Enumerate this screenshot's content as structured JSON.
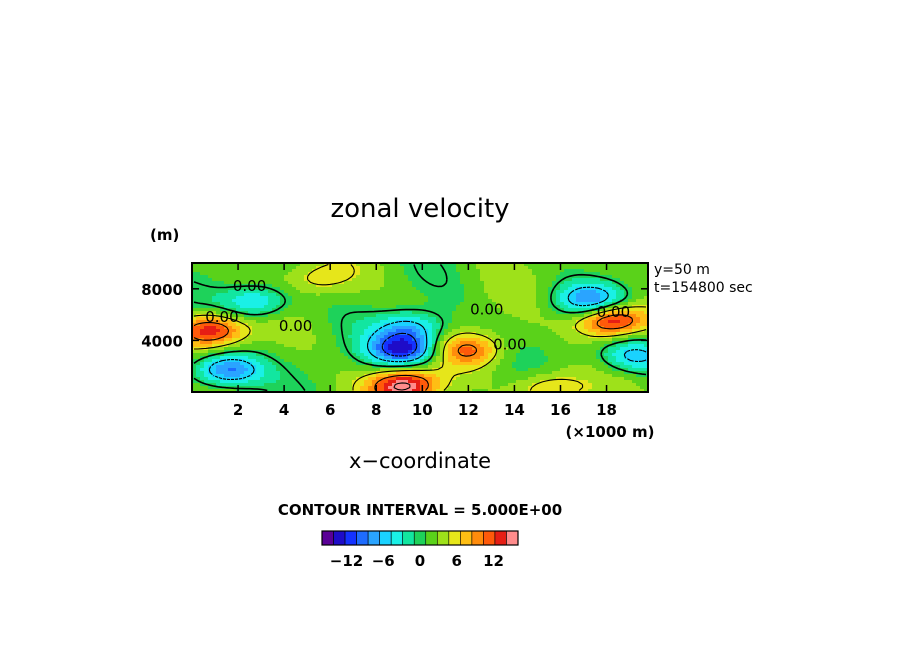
{
  "chart_data": {
    "type": "heatmap",
    "title": "zonal velocity",
    "xlabel": "x−coordinate",
    "x_unit": "(×1000 m)",
    "y_unit": "(m)",
    "xlim": [
      0,
      19.8
    ],
    "ylim": [
      0,
      10000
    ],
    "x_ticks": [
      2,
      4,
      6,
      8,
      10,
      12,
      14,
      16,
      18
    ],
    "y_ticks": [
      4000,
      8000
    ],
    "x_tick_labels": [
      "2",
      "4",
      "6",
      "8",
      "10",
      "12",
      "14",
      "16",
      "18"
    ],
    "y_tick_labels": [
      "4000",
      "8000"
    ],
    "info": [
      "y=50 m",
      "t=154800 sec"
    ],
    "contour_interval_text": "CONTOUR INTERVAL = 5.000E+00",
    "contour_labels": [
      {
        "text": "0.00",
        "x": 2.5,
        "y": 8200
      },
      {
        "text": "0.00",
        "x": 1.3,
        "y": 5800
      },
      {
        "text": "0.00",
        "x": 4.5,
        "y": 5100
      },
      {
        "text": "0.00",
        "x": 12.8,
        "y": 6400
      },
      {
        "text": "0.00",
        "x": 13.8,
        "y": 3700
      },
      {
        "text": "0.00",
        "x": 18.3,
        "y": 6200
      }
    ],
    "field_features": [
      {
        "sign": "positive",
        "x": 0.8,
        "y": 4800,
        "peak": 12
      },
      {
        "sign": "negative",
        "x": 1.5,
        "y": 1700,
        "peak": -12
      },
      {
        "sign": "negative",
        "x": 2.8,
        "y": 7000,
        "peak": -8
      },
      {
        "sign": "negative",
        "x": 9.2,
        "y": 3300,
        "peak": -14
      },
      {
        "sign": "positive",
        "x": 9.2,
        "y": 500,
        "peak": 14
      },
      {
        "sign": "positive",
        "x": 12.0,
        "y": 3300,
        "peak": 8
      },
      {
        "sign": "negative",
        "x": 9.5,
        "y": 5000,
        "peak": -8
      },
      {
        "sign": "positive",
        "x": 18.2,
        "y": 5600,
        "peak": 14
      },
      {
        "sign": "negative",
        "x": 17.3,
        "y": 7100,
        "peak": -10
      },
      {
        "sign": "negative",
        "x": 19.2,
        "y": 2800,
        "peak": -8
      },
      {
        "sign": "positive",
        "x": 15.5,
        "y": 300,
        "peak": 6
      },
      {
        "sign": "positive",
        "x": 5.5,
        "y": 8800,
        "peak": 4
      }
    ],
    "colorbar": {
      "tick_labels": [
        "−12",
        "−6",
        "0",
        "6",
        "12"
      ],
      "tick_values": [
        -12,
        -6,
        0,
        6,
        12
      ],
      "range": [
        -16,
        16
      ],
      "colors": [
        "#5a0096",
        "#1e0cc8",
        "#1432ff",
        "#1e6cff",
        "#2aa4ff",
        "#1ad2ff",
        "#1af0e6",
        "#12e6a0",
        "#1ed25a",
        "#5ad21a",
        "#9ee11a",
        "#e6e61a",
        "#ffbe14",
        "#ff8c0c",
        "#ff5a0a",
        "#e61e14",
        "#ff8c8c"
      ]
    }
  }
}
